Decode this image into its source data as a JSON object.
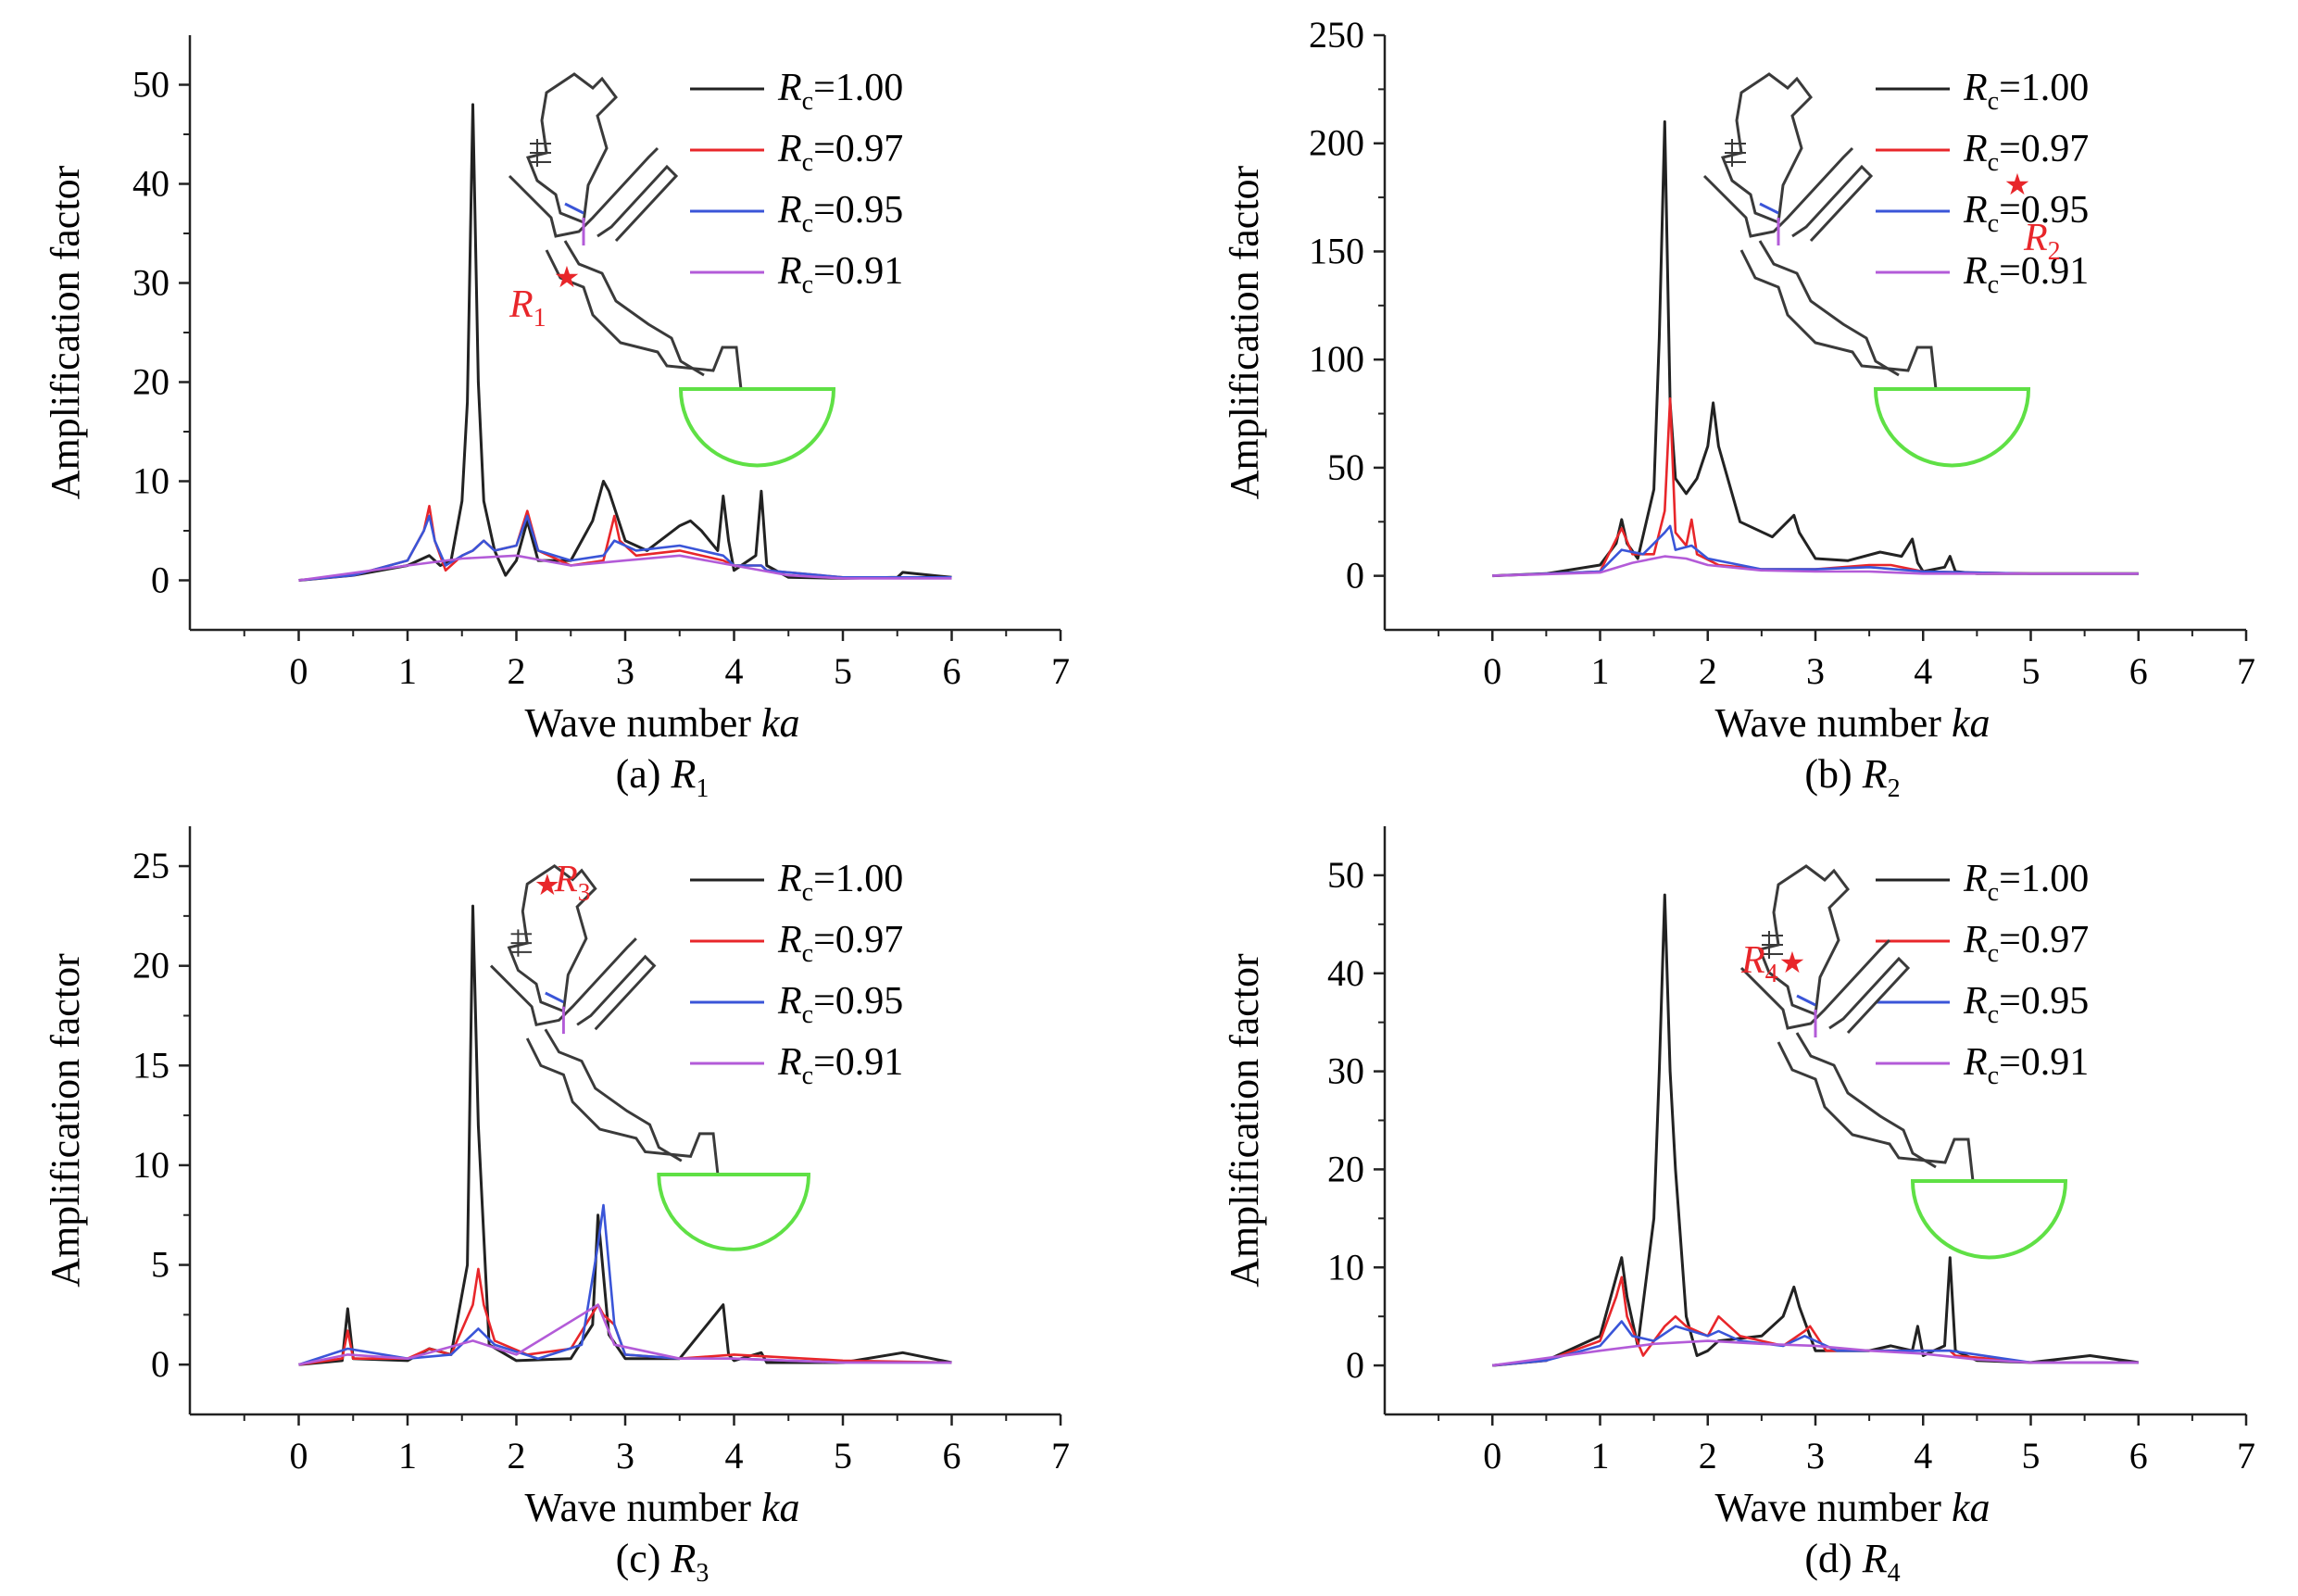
{
  "figure": {
    "background": "#ffffff"
  },
  "chart_data": [
    {
      "panel_id": "a",
      "type": "line",
      "caption": "(a) R1",
      "caption_letter": "(a)",
      "caption_var": "R",
      "caption_sub": "1",
      "xlabel_text": "Wave number ",
      "xlabel_italic": "ka",
      "ylabel": "Amplification factor",
      "xlim": [
        -1,
        7
      ],
      "ylim": [
        -5,
        55
      ],
      "xticks": [
        0,
        1,
        2,
        3,
        4,
        5,
        6,
        7
      ],
      "yticks": [
        0,
        10,
        20,
        30,
        40,
        50
      ],
      "grid": false,
      "legend_position": "top-right",
      "inset_label_var": "R",
      "inset_label_sub": "1",
      "series": [
        {
          "name": "Rc=1.00",
          "legend_var": "R",
          "legend_sub": "c",
          "legend_value": "=1.00",
          "color": "#222222",
          "x": [
            0,
            0.5,
            1.0,
            1.2,
            1.3,
            1.4,
            1.5,
            1.55,
            1.6,
            1.65,
            1.7,
            1.8,
            1.9,
            2.0,
            2.1,
            2.2,
            2.5,
            2.7,
            2.8,
            2.85,
            3.0,
            3.2,
            3.5,
            3.6,
            3.7,
            3.85,
            3.9,
            3.95,
            4.0,
            4.2,
            4.25,
            4.3,
            4.5,
            5.0,
            5.5,
            5.55,
            6.0
          ],
          "y": [
            0,
            0.5,
            1.5,
            2.5,
            1.5,
            2.0,
            8,
            18,
            48,
            20,
            8,
            3,
            0.5,
            2,
            6,
            2,
            2,
            6,
            10,
            9,
            4,
            3,
            5.5,
            6,
            5,
            3,
            8.5,
            4,
            1,
            2.5,
            9,
            1.5,
            0.3,
            0.2,
            0.3,
            0.8,
            0.3
          ]
        },
        {
          "name": "Rc=0.97",
          "legend_var": "R",
          "legend_sub": "c",
          "legend_value": "=0.97",
          "color": "#e8262a",
          "x": [
            0,
            0.5,
            1.0,
            1.15,
            1.2,
            1.25,
            1.35,
            1.5,
            1.6,
            1.7,
            1.8,
            2.0,
            2.1,
            2.2,
            2.5,
            2.8,
            2.9,
            2.95,
            3.1,
            3.5,
            3.9,
            4.0,
            4.25,
            4.3,
            5.0,
            6.0
          ],
          "y": [
            0,
            0.5,
            2,
            5,
            7.5,
            4,
            1,
            2.5,
            3,
            4,
            3,
            3.5,
            7,
            3,
            1.5,
            2,
            6.5,
            4,
            2.5,
            3,
            2,
            1.5,
            1.5,
            1,
            0.3,
            0.3
          ]
        },
        {
          "name": "Rc=0.95",
          "legend_var": "R",
          "legend_sub": "c",
          "legend_value": "=0.95",
          "color": "#3a55d8",
          "x": [
            0,
            0.5,
            1.0,
            1.15,
            1.2,
            1.25,
            1.35,
            1.5,
            1.6,
            1.7,
            1.8,
            2.0,
            2.1,
            2.2,
            2.5,
            2.8,
            2.9,
            3.1,
            3.5,
            3.9,
            4.0,
            4.25,
            4.3,
            5.0,
            6.0
          ],
          "y": [
            0,
            0.5,
            2,
            5,
            6.5,
            4,
            1.5,
            2.5,
            3,
            4,
            3,
            3.5,
            6.5,
            3,
            2,
            2.5,
            4,
            3,
            3.5,
            2.5,
            1.5,
            1.5,
            1,
            0.3,
            0.3
          ]
        },
        {
          "name": "Rc=0.91",
          "legend_var": "R",
          "legend_sub": "c",
          "legend_value": "=0.91",
          "color": "#b35bd8",
          "x": [
            0,
            1.0,
            1.5,
            2.0,
            2.5,
            3.0,
            3.5,
            4.0,
            4.5,
            5.0,
            6.0
          ],
          "y": [
            0,
            1.5,
            2.2,
            2.5,
            1.5,
            2,
            2.5,
            1.5,
            0.5,
            0.2,
            0.2
          ]
        }
      ]
    },
    {
      "panel_id": "b",
      "type": "line",
      "caption": "(b) R2",
      "caption_letter": "(b)",
      "caption_var": "R",
      "caption_sub": "2",
      "xlabel_text": "Wave number ",
      "xlabel_italic": "ka",
      "ylabel": "Amplification factor",
      "xlim": [
        -1,
        7
      ],
      "ylim": [
        -25,
        250
      ],
      "xticks": [
        0,
        1,
        2,
        3,
        4,
        5,
        6,
        7
      ],
      "yticks": [
        0,
        50,
        100,
        150,
        200,
        250
      ],
      "grid": false,
      "legend_position": "top-right",
      "inset_label_var": "R",
      "inset_label_sub": "2",
      "series": [
        {
          "name": "Rc=1.00",
          "legend_var": "R",
          "legend_sub": "c",
          "legend_value": "=1.00",
          "color": "#222222",
          "x": [
            0,
            0.5,
            1.0,
            1.15,
            1.2,
            1.25,
            1.35,
            1.5,
            1.55,
            1.6,
            1.65,
            1.7,
            1.8,
            1.9,
            2.0,
            2.05,
            2.1,
            2.3,
            2.6,
            2.8,
            2.85,
            3.0,
            3.3,
            3.6,
            3.8,
            3.9,
            3.95,
            4.0,
            4.2,
            4.25,
            4.3,
            4.5,
            5.0,
            6.0
          ],
          "y": [
            0,
            1,
            5,
            15,
            26,
            15,
            8,
            40,
            110,
            210,
            80,
            45,
            38,
            45,
            60,
            80,
            60,
            25,
            18,
            28,
            20,
            8,
            7,
            11,
            9,
            17,
            6,
            2,
            4,
            9,
            2,
            1,
            1,
            1
          ]
        },
        {
          "name": "Rc=0.97",
          "legend_var": "R",
          "legend_sub": "c",
          "legend_value": "=0.97",
          "color": "#e8262a",
          "x": [
            0,
            1.0,
            1.2,
            1.3,
            1.5,
            1.6,
            1.65,
            1.7,
            1.8,
            1.85,
            1.9,
            2.1,
            2.5,
            3.0,
            3.5,
            3.7,
            4.0,
            5.0,
            6.0
          ],
          "y": [
            0,
            2,
            22,
            10,
            10,
            30,
            82,
            20,
            14,
            26,
            10,
            5,
            3,
            3,
            5,
            5,
            2,
            1,
            1
          ]
        },
        {
          "name": "Rc=0.95",
          "legend_var": "R",
          "legend_sub": "c",
          "legend_value": "=0.95",
          "color": "#3a55d8",
          "x": [
            0,
            1.0,
            1.2,
            1.4,
            1.6,
            1.65,
            1.7,
            1.85,
            2.0,
            2.5,
            3.0,
            3.5,
            4.0,
            5.0,
            6.0
          ],
          "y": [
            0,
            2,
            12,
            10,
            20,
            23,
            12,
            14,
            8,
            3,
            3,
            4,
            2,
            1,
            1
          ]
        },
        {
          "name": "Rc=0.91",
          "legend_var": "R",
          "legend_sub": "c",
          "legend_value": "=0.91",
          "color": "#b35bd8",
          "x": [
            0,
            1.0,
            1.3,
            1.6,
            1.8,
            2.0,
            2.5,
            3.0,
            3.5,
            4.0,
            5.0,
            6.0
          ],
          "y": [
            0,
            1.5,
            6,
            9,
            8,
            5,
            2.5,
            2,
            2,
            1,
            1,
            1
          ]
        }
      ]
    },
    {
      "panel_id": "c",
      "type": "line",
      "caption": "(c) R3",
      "caption_letter": "(c)",
      "caption_var": "R",
      "caption_sub": "3",
      "xlabel_text": "Wave number ",
      "xlabel_italic": "ka",
      "ylabel": "Amplification factor",
      "xlim": [
        -1,
        7
      ],
      "ylim": [
        -2.5,
        27
      ],
      "xticks": [
        0,
        1,
        2,
        3,
        4,
        5,
        6,
        7
      ],
      "yticks": [
        0,
        5,
        10,
        15,
        20,
        25
      ],
      "grid": false,
      "legend_position": "top-right",
      "inset_label_var": "R",
      "inset_label_sub": "3",
      "series": [
        {
          "name": "Rc=1.00",
          "legend_var": "R",
          "legend_sub": "c",
          "legend_value": "=1.00",
          "color": "#222222",
          "x": [
            0,
            0.4,
            0.45,
            0.5,
            1.0,
            1.2,
            1.4,
            1.55,
            1.6,
            1.65,
            1.75,
            2.0,
            2.5,
            2.7,
            2.75,
            2.8,
            2.85,
            3.0,
            3.5,
            3.9,
            3.95,
            4.0,
            4.25,
            4.3,
            5.0,
            5.55,
            6.0
          ],
          "y": [
            0,
            0.2,
            2.8,
            0.3,
            0.2,
            0.8,
            0.5,
            5,
            23,
            12,
            1,
            0.2,
            0.3,
            2,
            7.5,
            4.5,
            1.5,
            0.3,
            0.3,
            3,
            0.5,
            0.2,
            0.6,
            0.1,
            0.1,
            0.6,
            0.1
          ]
        },
        {
          "name": "Rc=0.97",
          "legend_var": "R",
          "legend_sub": "c",
          "legend_value": "=0.97",
          "color": "#e8262a",
          "x": [
            0,
            0.4,
            0.45,
            0.5,
            1.0,
            1.2,
            1.4,
            1.6,
            1.65,
            1.7,
            1.8,
            2.1,
            2.5,
            2.75,
            2.8,
            2.9,
            3.0,
            3.5,
            4.0,
            5.0,
            6.0
          ],
          "y": [
            0,
            0.3,
            1.7,
            0.3,
            0.3,
            0.8,
            0.5,
            3,
            4.8,
            3,
            1.2,
            0.5,
            0.8,
            3,
            2.5,
            2,
            0.5,
            0.3,
            0.5,
            0.2,
            0.1
          ]
        },
        {
          "name": "Rc=0.95",
          "legend_var": "R",
          "legend_sub": "c",
          "legend_value": "=0.95",
          "color": "#3a55d8",
          "x": [
            0,
            0.45,
            1.0,
            1.4,
            1.65,
            1.8,
            2.2,
            2.6,
            2.75,
            2.8,
            2.9,
            3.0,
            3.5,
            4.0,
            5.0,
            6.0
          ],
          "y": [
            0,
            0.8,
            0.3,
            0.5,
            1.8,
            1,
            0.3,
            1,
            6,
            8,
            2,
            0.5,
            0.3,
            0.3,
            0.1,
            0.1
          ]
        },
        {
          "name": "Rc=0.91",
          "legend_var": "R",
          "legend_sub": "c",
          "legend_value": "=0.91",
          "color": "#b35bd8",
          "x": [
            0,
            0.45,
            1.0,
            1.6,
            2.0,
            2.75,
            2.9,
            3.5,
            4.0,
            5.0,
            6.0
          ],
          "y": [
            0,
            0.5,
            0.3,
            1.2,
            0.5,
            3,
            1,
            0.3,
            0.3,
            0.1,
            0.1
          ]
        }
      ]
    },
    {
      "panel_id": "d",
      "type": "line",
      "caption": "(d) R4",
      "caption_letter": "(d)",
      "caption_var": "R",
      "caption_sub": "4",
      "xlabel_text": "Wave number ",
      "xlabel_italic": "ka",
      "ylabel": "Amplification factor",
      "xlim": [
        -1,
        7
      ],
      "ylim": [
        -5,
        55
      ],
      "xticks": [
        0,
        1,
        2,
        3,
        4,
        5,
        6,
        7
      ],
      "yticks": [
        0,
        10,
        20,
        30,
        40,
        50
      ],
      "grid": false,
      "legend_position": "top-right",
      "inset_label_var": "R",
      "inset_label_sub": "4",
      "series": [
        {
          "name": "Rc=1.00",
          "legend_var": "R",
          "legend_sub": "c",
          "legend_value": "=1.00",
          "color": "#222222",
          "x": [
            0,
            0.5,
            1.0,
            1.15,
            1.2,
            1.25,
            1.35,
            1.5,
            1.55,
            1.6,
            1.65,
            1.7,
            1.8,
            1.9,
            2.0,
            2.1,
            2.5,
            2.7,
            2.8,
            2.85,
            3.0,
            3.5,
            3.7,
            3.9,
            3.95,
            4.0,
            4.2,
            4.25,
            4.3,
            4.5,
            5.0,
            5.55,
            6.0
          ],
          "y": [
            0,
            0.5,
            3,
            9,
            11,
            7,
            2,
            15,
            30,
            48,
            30,
            20,
            5,
            1,
            1.5,
            2.5,
            3,
            5,
            8,
            6,
            1.5,
            1.5,
            2,
            1.5,
            4,
            1,
            2,
            11,
            1.5,
            0.5,
            0.3,
            1,
            0.3
          ]
        },
        {
          "name": "Rc=0.97",
          "legend_var": "R",
          "legend_sub": "c",
          "legend_value": "=0.97",
          "color": "#e8262a",
          "x": [
            0,
            0.5,
            1.0,
            1.15,
            1.2,
            1.25,
            1.4,
            1.6,
            1.7,
            1.8,
            2.0,
            2.1,
            2.3,
            2.7,
            2.9,
            2.95,
            3.1,
            3.5,
            4.0,
            4.25,
            4.3,
            5.0,
            6.0
          ],
          "y": [
            0,
            0.5,
            2.5,
            7,
            9,
            5,
            1,
            4,
            5,
            4,
            3,
            5,
            3,
            2,
            3.5,
            4,
            1.5,
            1.5,
            1.5,
            1.5,
            1,
            0.3,
            0.3
          ]
        },
        {
          "name": "Rc=0.95",
          "legend_var": "R",
          "legend_sub": "c",
          "legend_value": "=0.95",
          "color": "#3a55d8",
          "x": [
            0,
            0.5,
            1.0,
            1.2,
            1.3,
            1.5,
            1.7,
            2.0,
            2.1,
            2.3,
            2.7,
            2.9,
            3.2,
            3.5,
            4.0,
            4.25,
            5.0,
            6.0
          ],
          "y": [
            0,
            0.5,
            2,
            4.5,
            3,
            2.5,
            4,
            3,
            3.5,
            2.5,
            2,
            3,
            1.5,
            1.5,
            1.5,
            1.5,
            0.3,
            0.3
          ]
        },
        {
          "name": "Rc=0.91",
          "legend_var": "R",
          "legend_sub": "c",
          "legend_value": "=0.91",
          "color": "#b35bd8",
          "x": [
            0,
            1.0,
            1.5,
            2.0,
            2.5,
            3.0,
            3.5,
            4.0,
            4.5,
            5.0,
            6.0
          ],
          "y": [
            0,
            1.5,
            2.2,
            2.5,
            2.2,
            2.0,
            1.5,
            1.2,
            0.6,
            0.3,
            0.3
          ]
        }
      ]
    }
  ],
  "inset": {
    "outline_color": "#3a3a3a",
    "boundary_color": "#5fe045",
    "marker_color": "#e8262a",
    "channel_colors": [
      "#3a55d8",
      "#b35bd8"
    ]
  }
}
